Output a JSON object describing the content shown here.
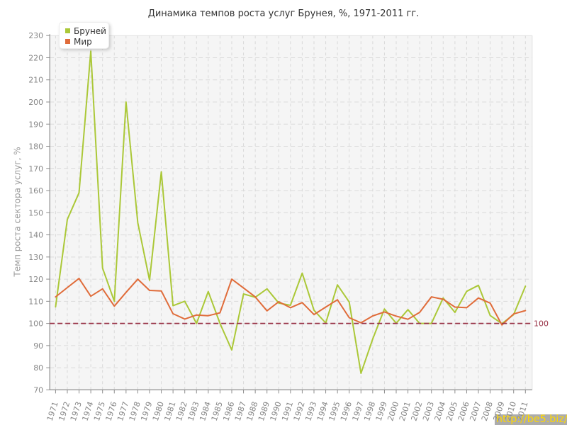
{
  "title": "Динамика темпов роста услуг Брунея, %, 1971-2011 гг.",
  "watermark": "http://be5.biz/",
  "chart_data": {
    "type": "line",
    "title": "Динамика темпов роста услуг Брунея, %, 1971-2011 гг.",
    "xlabel": "",
    "ylabel": "Темп роста сектора услуг, %",
    "ylim": [
      70,
      230
    ],
    "ytick_step": 10,
    "grid": true,
    "legend_position": "top-left",
    "x": [
      1971,
      1972,
      1973,
      1974,
      1975,
      1976,
      1977,
      1978,
      1979,
      1980,
      1981,
      1982,
      1983,
      1984,
      1985,
      1986,
      1987,
      1988,
      1989,
      1990,
      1991,
      1992,
      1993,
      1994,
      1995,
      1996,
      1997,
      1998,
      1999,
      2000,
      2001,
      2002,
      2003,
      2004,
      2005,
      2006,
      2007,
      2008,
      2009,
      2010,
      2011
    ],
    "series": [
      {
        "name": "Бруней",
        "color": "#abc838",
        "values": [
          107.5,
          147,
          159,
          223,
          125,
          110,
          200,
          145.5,
          119.5,
          168.5,
          108,
          110,
          100,
          114.4,
          100,
          88,
          113.3,
          111.8,
          115.6,
          109.2,
          108.2,
          122.7,
          106,
          100.2,
          117.4,
          109.7,
          77.5,
          93,
          106.5,
          100.1,
          106.2,
          100,
          100,
          111.5,
          105,
          114.5,
          117.2,
          103.6,
          99.9,
          104,
          116.8
        ]
      },
      {
        "name": "Мир",
        "color": "#e06c3a",
        "values": [
          112,
          116.2,
          120.3,
          112.3,
          115.6,
          107.8,
          114,
          120,
          114.9,
          114.7,
          104.4,
          102,
          103.8,
          103.5,
          104.8,
          120,
          116,
          112,
          105.7,
          109.8,
          107.1,
          109.4,
          104,
          107.4,
          110.7,
          102.6,
          100.3,
          103.4,
          105.2,
          103.3,
          101.9,
          105,
          112,
          110.9,
          107.4,
          107.1,
          111.5,
          109.2,
          99.3,
          104.3,
          105.8
        ]
      }
    ],
    "refline": {
      "value": 100,
      "label": "100",
      "color": "#993347"
    }
  }
}
